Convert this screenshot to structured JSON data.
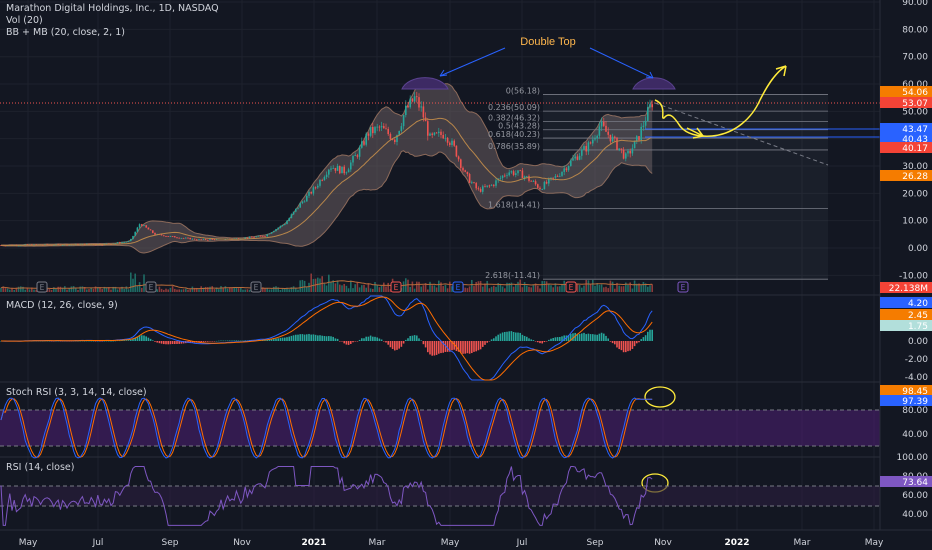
{
  "colors": {
    "background": "#131722",
    "grid": "#1e222d",
    "text": "#d1d4dc",
    "up": "#26a69a",
    "down": "#ef5350",
    "bb_band": "#8c6a5a",
    "bb_basis": "#b8864a",
    "macd_line": "#2962ff",
    "signal_line": "#ff6d00",
    "stoch_k": "#2962ff",
    "stoch_d": "#ff6d00",
    "stoch_zone": "#4a1e6e",
    "rsi_line": "#7e57c2",
    "annotation": "#ffeb3b",
    "top_arc": "#3d2a64",
    "fib_line": "#787b86",
    "hline_blue": "#2962ff"
  },
  "header": {
    "title": "Marathon Digital Holdings, Inc., 1D, NASDAQ",
    "volume": "Vol (20)",
    "bb": "BB + MB (20, close, 2, 1)"
  },
  "annotation": {
    "double_top": "Double Top"
  },
  "earnings_marker": "E",
  "fib_labels": [
    "0(56.18)",
    "0.236(50.09)",
    "0.382(46.32)",
    "0.5(43.28)",
    "0.618(40.23)",
    "0.786(35.89)",
    "1.618(14.41)",
    "2.618(-11.41)"
  ],
  "fib_values": [
    56.18,
    50.09,
    46.32,
    43.28,
    40.23,
    35.89,
    14.41,
    -11.41
  ],
  "price_axis": {
    "ticks": [
      "90.00",
      "80.00",
      "70.00",
      "60.00",
      "50.00",
      "40.00",
      "30.00",
      "20.00",
      "10.00",
      "0.00",
      "-10.00"
    ],
    "tick_values": [
      90,
      80,
      70,
      60,
      50,
      40,
      30,
      20,
      10,
      0,
      -10
    ],
    "badges": [
      {
        "text": "54.06",
        "value": 54.06,
        "color": "#f57c00"
      },
      {
        "text": "53.07",
        "value": 53.07,
        "color": "#f44336"
      },
      {
        "text": "43.47",
        "value": 43.47,
        "color": "#2962ff"
      },
      {
        "text": "40.43",
        "value": 40.43,
        "color": "#2962ff"
      },
      {
        "text": "40.17",
        "value": 40.17,
        "color": "#f44336"
      },
      {
        "text": "26.28",
        "value": 26.28,
        "color": "#f57c00"
      },
      {
        "text": "22.138M",
        "value": -12.5,
        "color": "#f44336"
      }
    ]
  },
  "macd": {
    "title": "MACD (12, 26, close, 9)",
    "ticks": [
      "0.00",
      "-2.00",
      "-4.00"
    ],
    "tick_values": [
      0,
      -2,
      -4
    ],
    "badges": [
      {
        "text": "4.20",
        "value": 4.2,
        "color": "#2962ff"
      },
      {
        "text": "2.45",
        "value": 2.45,
        "color": "#f57c00"
      },
      {
        "text": "1.75",
        "value": 1.75,
        "color": "#b2dfdb"
      }
    ]
  },
  "stoch_rsi": {
    "title": "Stoch RSI (3, 3, 14, 14, close)",
    "ticks": [
      "80.00",
      "40.00"
    ],
    "tick_values": [
      80,
      40
    ],
    "badges": [
      {
        "text": "98.45",
        "value": 98.45,
        "color": "#f57c00"
      },
      {
        "text": "97.39",
        "value": 97.39,
        "color": "#2962ff"
      }
    ]
  },
  "rsi": {
    "title": "RSI (14, close)",
    "ticks": [
      "100.00",
      "80.00",
      "60.00",
      "40.00"
    ],
    "tick_values": [
      100,
      80,
      60,
      40
    ],
    "badges": [
      {
        "text": "73.64",
        "value": 73.64,
        "color": "#7e57c2"
      }
    ]
  },
  "time_axis": [
    "May",
    "Jul",
    "Sep",
    "Nov",
    "2021",
    "Mar",
    "May",
    "Jul",
    "Sep",
    "Nov",
    "2022",
    "Mar",
    "May"
  ],
  "chart_data": {
    "type": "candlestick",
    "title": "Marathon Digital Holdings, Inc., 1D, NASDAQ",
    "x_months": [
      "May",
      "Jul",
      "Sep",
      "Nov",
      "2021",
      "Mar",
      "May",
      "Jul",
      "Sep",
      "Nov",
      "2022",
      "Mar",
      "May"
    ],
    "ylim": [
      -14,
      93
    ],
    "price_path": [
      [
        0,
        1
      ],
      [
        60,
        1.2
      ],
      [
        110,
        1.5
      ],
      [
        130,
        2.5
      ],
      [
        140,
        9
      ],
      [
        155,
        5
      ],
      [
        175,
        4
      ],
      [
        200,
        3
      ],
      [
        240,
        3.5
      ],
      [
        265,
        4.5
      ],
      [
        285,
        9
      ],
      [
        300,
        16
      ],
      [
        315,
        22
      ],
      [
        330,
        30
      ],
      [
        345,
        28
      ],
      [
        360,
        36
      ],
      [
        368,
        42
      ],
      [
        380,
        44
      ],
      [
        395,
        40
      ],
      [
        405,
        50
      ],
      [
        415,
        55
      ],
      [
        422,
        50
      ],
      [
        430,
        40
      ],
      [
        445,
        42
      ],
      [
        455,
        36
      ],
      [
        465,
        27
      ],
      [
        478,
        21
      ],
      [
        492,
        23
      ],
      [
        508,
        28
      ],
      [
        522,
        27
      ],
      [
        540,
        22
      ],
      [
        556,
        26
      ],
      [
        572,
        32
      ],
      [
        590,
        38
      ],
      [
        600,
        45
      ],
      [
        612,
        40
      ],
      [
        626,
        33
      ],
      [
        638,
        40
      ],
      [
        646,
        48
      ],
      [
        653,
        54
      ]
    ],
    "double_top": [
      {
        "x": 420,
        "price": 56.18
      },
      {
        "x": 653,
        "price": 54.06
      }
    ],
    "projection_arrow_to": {
      "x": 786,
      "price": 68
    },
    "volume_latest": "22.138M",
    "bb_period": 20,
    "last_close": 53.07,
    "macd": {
      "macd": 4.2,
      "signal": 2.45,
      "hist": 1.75
    },
    "stoch_rsi": {
      "k": 97.39,
      "d": 98.45
    },
    "rsi": 73.64
  }
}
